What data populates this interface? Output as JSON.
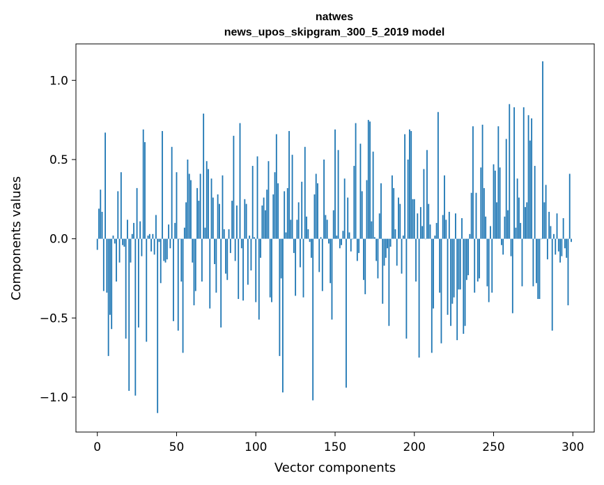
{
  "chart_data": {
    "type": "bar",
    "title_line1": "natwes",
    "title_line2": "news_upos_skipgram_300_5_2019 model",
    "xlabel": "Vector components",
    "ylabel": "Components values",
    "xlim": [
      -13.5,
      313.5
    ],
    "ylim": [
      -1.22,
      1.23
    ],
    "x_ticks": [
      0,
      50,
      100,
      150,
      200,
      250,
      300
    ],
    "x_tick_labels": [
      "0",
      "50",
      "100",
      "150",
      "200",
      "250",
      "300"
    ],
    "y_ticks": [
      -1.0,
      -0.5,
      0.0,
      0.5,
      1.0
    ],
    "y_tick_labels": [
      "−1.0",
      "−0.5",
      "0.0",
      "0.5",
      "1.0"
    ],
    "bar_color": "#1f77b4",
    "grid": false,
    "x": [
      0,
      1,
      2,
      3,
      4,
      5,
      6,
      7,
      8,
      9,
      10,
      11,
      12,
      13,
      14,
      15,
      16,
      17,
      18,
      19,
      20,
      21,
      22,
      23,
      24,
      25,
      26,
      27,
      28,
      29,
      30,
      31,
      32,
      33,
      34,
      35,
      36,
      37,
      38,
      39,
      40,
      41,
      42,
      43,
      44,
      45,
      46,
      47,
      48,
      49,
      50,
      51,
      52,
      53,
      54,
      55,
      56,
      57,
      58,
      59,
      60,
      61,
      62,
      63,
      64,
      65,
      66,
      67,
      68,
      69,
      70,
      71,
      72,
      73,
      74,
      75,
      76,
      77,
      78,
      79,
      80,
      81,
      82,
      83,
      84,
      85,
      86,
      87,
      88,
      89,
      90,
      91,
      92,
      93,
      94,
      95,
      96,
      97,
      98,
      99,
      100,
      101,
      102,
      103,
      104,
      105,
      106,
      107,
      108,
      109,
      110,
      111,
      112,
      113,
      114,
      115,
      116,
      117,
      118,
      119,
      120,
      121,
      122,
      123,
      124,
      125,
      126,
      127,
      128,
      129,
      130,
      131,
      132,
      133,
      134,
      135,
      136,
      137,
      138,
      139,
      140,
      141,
      142,
      143,
      144,
      145,
      146,
      147,
      148,
      149,
      150,
      151,
      152,
      153,
      154,
      155,
      156,
      157,
      158,
      159,
      160,
      161,
      162,
      163,
      164,
      165,
      166,
      167,
      168,
      169,
      170,
      171,
      172,
      173,
      174,
      175,
      176,
      177,
      178,
      179,
      180,
      181,
      182,
      183,
      184,
      185,
      186,
      187,
      188,
      189,
      190,
      191,
      192,
      193,
      194,
      195,
      196,
      197,
      198,
      199,
      200,
      201,
      202,
      203,
      204,
      205,
      206,
      207,
      208,
      209,
      210,
      211,
      212,
      213,
      214,
      215,
      216,
      217,
      218,
      219,
      220,
      221,
      222,
      223,
      224,
      225,
      226,
      227,
      228,
      229,
      230,
      231,
      232,
      233,
      234,
      235,
      236,
      237,
      238,
      239,
      240,
      241,
      242,
      243,
      244,
      245,
      246,
      247,
      248,
      249,
      250,
      251,
      252,
      253,
      254,
      255,
      256,
      257,
      258,
      259,
      260,
      261,
      262,
      263,
      264,
      265,
      266,
      267,
      268,
      269,
      270,
      271,
      272,
      273,
      274,
      275,
      276,
      277,
      278,
      279,
      280,
      281,
      282,
      283,
      284,
      285,
      286,
      287,
      288,
      289,
      290,
      291,
      292,
      293,
      294,
      295,
      296,
      297,
      298,
      299
    ],
    "values": [
      -0.07,
      0.19,
      0.31,
      0.17,
      -0.33,
      0.67,
      -0.34,
      -0.74,
      -0.48,
      -0.57,
      0.02,
      -0.03,
      -0.27,
      0.3,
      -0.15,
      0.42,
      -0.04,
      -0.05,
      -0.63,
      0.12,
      -0.96,
      -0.15,
      0.03,
      0.1,
      -0.99,
      0.32,
      -0.56,
      0.11,
      -0.11,
      0.69,
      0.61,
      -0.65,
      0.02,
      0.03,
      -0.08,
      0.03,
      -0.1,
      0.15,
      -1.1,
      -0.02,
      -0.28,
      0.68,
      -0.14,
      -0.15,
      -0.13,
      0.09,
      -0.06,
      0.58,
      -0.52,
      0.1,
      0.42,
      -0.58,
      0.0,
      -0.27,
      -0.72,
      0.07,
      0.23,
      0.5,
      0.41,
      0.37,
      -0.15,
      -0.42,
      -0.33,
      0.32,
      0.24,
      0.41,
      -0.27,
      0.79,
      0.07,
      0.49,
      0.44,
      -0.44,
      0.38,
      0.26,
      -0.16,
      -0.34,
      0.28,
      0.22,
      -0.56,
      0.4,
      0.06,
      -0.22,
      -0.26,
      0.06,
      -0.09,
      0.24,
      0.65,
      -0.14,
      0.21,
      -0.38,
      0.73,
      -0.06,
      -0.39,
      0.25,
      0.22,
      -0.29,
      0.02,
      -0.2,
      0.46,
      0.01,
      -0.4,
      0.52,
      -0.51,
      -0.12,
      0.21,
      0.26,
      0.18,
      0.31,
      0.49,
      -0.37,
      -0.4,
      0.28,
      0.42,
      0.66,
      0.35,
      -0.74,
      -0.25,
      -0.97,
      0.3,
      0.04,
      0.32,
      0.68,
      0.12,
      0.53,
      -0.09,
      -0.36,
      0.12,
      0.23,
      -0.18,
      0.36,
      -0.37,
      0.58,
      0.14,
      0.06,
      -0.02,
      -0.12,
      -1.02,
      0.28,
      0.41,
      0.35,
      -0.21,
      0.01,
      -0.33,
      0.5,
      0.15,
      0.12,
      -0.03,
      -0.28,
      -0.51,
      0.18,
      0.69,
      0.02,
      0.56,
      -0.06,
      -0.04,
      0.05,
      0.38,
      -0.94,
      0.26,
      0.04,
      -0.08,
      0.0,
      0.46,
      0.73,
      -0.14,
      -0.09,
      0.6,
      0.3,
      -0.26,
      -0.35,
      0.37,
      0.75,
      0.74,
      0.11,
      0.55,
      0.01,
      -0.14,
      -0.25,
      0.16,
      0.35,
      -0.41,
      -0.17,
      -0.12,
      -0.06,
      -0.55,
      -0.05,
      0.4,
      0.32,
      0.06,
      -0.17,
      0.26,
      0.22,
      -0.22,
      0.02,
      0.66,
      -0.63,
      0.5,
      0.69,
      0.68,
      0.25,
      0.25,
      -0.27,
      0.16,
      -0.75,
      0.2,
      0.08,
      0.44,
      0.0,
      0.56,
      0.22,
      0.09,
      -0.72,
      -0.44,
      0.02,
      0.1,
      0.8,
      -0.34,
      -0.66,
      0.15,
      0.4,
      0.12,
      -0.48,
      0.17,
      -0.55,
      -0.41,
      -0.37,
      0.16,
      -0.64,
      -0.32,
      -0.32,
      0.13,
      -0.6,
      -0.55,
      -0.26,
      -0.23,
      0.03,
      0.29,
      0.71,
      -0.34,
      0.29,
      -0.27,
      -0.25,
      0.45,
      0.72,
      0.32,
      0.14,
      -0.3,
      -0.4,
      0.08,
      -0.34,
      0.47,
      0.43,
      0.23,
      0.71,
      0.45,
      -0.04,
      -0.1,
      0.14,
      0.63,
      0.18,
      0.85,
      -0.11,
      -0.47,
      0.83,
      0.07,
      0.38,
      0.26,
      0.1,
      -0.3,
      0.83,
      0.2,
      0.23,
      0.78,
      0.62,
      0.76,
      -0.3,
      0.46,
      -0.28,
      -0.38,
      -0.38,
      0.0,
      1.12,
      0.23,
      0.34,
      -0.13,
      0.17,
      0.08,
      -0.58,
      0.03,
      -0.1,
      0.16,
      -0.08,
      -0.15,
      -0.11,
      0.13,
      -0.06,
      -0.12,
      -0.42,
      0.41,
      -0.02
    ]
  }
}
